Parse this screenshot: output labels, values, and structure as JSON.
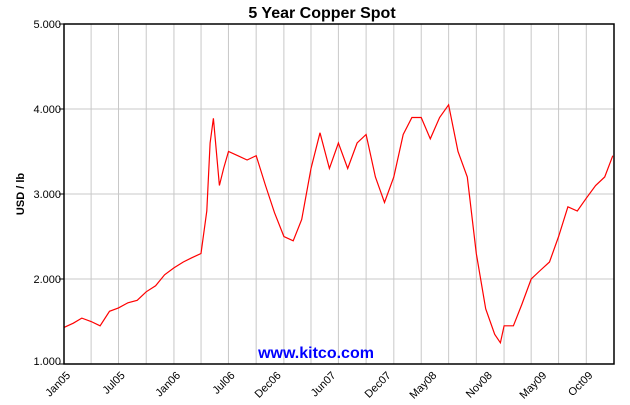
{
  "chart_data": {
    "type": "line",
    "title": "5 Year Copper Spot",
    "ylabel": "USD / lb",
    "xlabel": "",
    "watermark": "www.kitco.com",
    "ylim": [
      1.0,
      5.0
    ],
    "xlim": [
      "2005-01",
      "2010-01"
    ],
    "yticks": [
      "1.000",
      "2.000",
      "3.000",
      "4.000",
      "5.000"
    ],
    "xtick_labels": [
      {
        "label": "Jan05",
        "date": "2005-01"
      },
      {
        "label": "Jul05",
        "date": "2005-07"
      },
      {
        "label": "Jan06",
        "date": "2006-01"
      },
      {
        "label": "Jul06",
        "date": "2006-07"
      },
      {
        "label": "Dec06",
        "date": "2006-12"
      },
      {
        "label": "Jun07",
        "date": "2007-06"
      },
      {
        "label": "Dec07",
        "date": "2007-12"
      },
      {
        "label": "May08",
        "date": "2008-05"
      },
      {
        "label": "Nov08",
        "date": "2008-11"
      },
      {
        "label": "May09",
        "date": "2009-05"
      },
      {
        "label": "Oct09",
        "date": "2009-10"
      }
    ],
    "grid": true,
    "line_color": "#ff0000",
    "watermark_color": "#0000ff",
    "series": [
      {
        "x": [
          "2005-01",
          "2005-02",
          "2005-03",
          "2005-04",
          "2005-05",
          "2005-06",
          "2005-07",
          "2005-08",
          "2005-09",
          "2005-10",
          "2005-11",
          "2005-12",
          "2006-01",
          "2006-02",
          "2006-03",
          "2006-04",
          "2006-04-20",
          "2006-05",
          "2006-05-12",
          "2006-06",
          "2006-06-15",
          "2006-07",
          "2006-08",
          "2006-09",
          "2006-10",
          "2006-11",
          "2006-12",
          "2007-01",
          "2007-02",
          "2007-03",
          "2007-04",
          "2007-05",
          "2007-06",
          "2007-07",
          "2007-08",
          "2007-09",
          "2007-10",
          "2007-11",
          "2007-12",
          "2008-01",
          "2008-02",
          "2008-03",
          "2008-04",
          "2008-05",
          "2008-06",
          "2008-07",
          "2008-08",
          "2008-09",
          "2008-10",
          "2008-11",
          "2008-12",
          "2008-12-20",
          "2009-01",
          "2009-02",
          "2009-03",
          "2009-04",
          "2009-05",
          "2009-06",
          "2009-07",
          "2009-08",
          "2009-09",
          "2009-10",
          "2009-11",
          "2009-12",
          "2009-12-28"
        ],
        "values": [
          1.43,
          1.48,
          1.54,
          1.5,
          1.45,
          1.62,
          1.66,
          1.72,
          1.75,
          1.85,
          1.92,
          2.05,
          2.13,
          2.2,
          2.25,
          2.3,
          2.8,
          3.6,
          3.89,
          3.1,
          3.3,
          3.5,
          3.45,
          3.4,
          3.45,
          3.1,
          2.78,
          2.5,
          2.45,
          2.7,
          3.3,
          3.72,
          3.3,
          3.6,
          3.3,
          3.6,
          3.7,
          3.2,
          2.9,
          3.2,
          3.7,
          3.9,
          3.9,
          3.65,
          3.9,
          4.05,
          3.5,
          3.2,
          2.3,
          1.65,
          1.35,
          1.25,
          1.45,
          1.45,
          1.7,
          2.0,
          2.1,
          2.2,
          2.5,
          2.85,
          2.8,
          2.95,
          3.1,
          3.2,
          3.45
        ]
      }
    ]
  }
}
